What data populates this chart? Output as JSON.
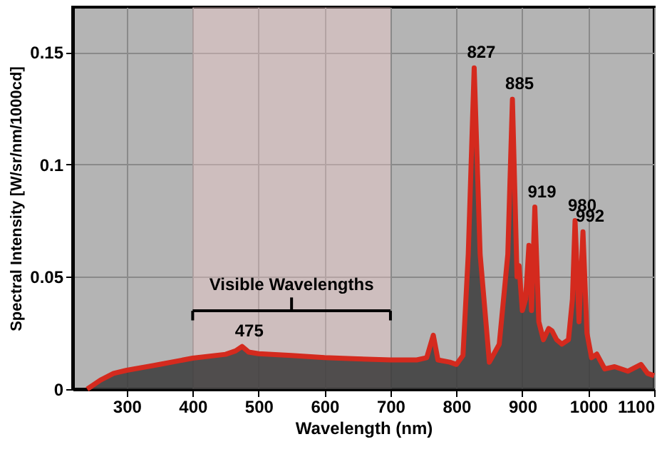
{
  "chart_data": {
    "type": "area",
    "xlabel": "Wavelength (nm)",
    "ylabel": "Spectral Intensity [W/sr/nm/1000cd]",
    "xlim": [
      218,
      1100
    ],
    "xticks": [
      300,
      400,
      500,
      600,
      700,
      800,
      900,
      1000,
      1100
    ],
    "ylim": [
      0,
      0.17
    ],
    "yticks": [
      0,
      0.05,
      0.1,
      0.15
    ],
    "grid": true,
    "x": [
      240,
      260,
      280,
      300,
      350,
      400,
      450,
      465,
      475,
      485,
      500,
      550,
      600,
      650,
      700,
      740,
      755,
      765,
      772,
      790,
      800,
      810,
      818,
      827,
      836,
      850,
      865,
      878,
      885,
      892,
      895,
      900,
      905,
      910,
      914,
      919,
      925,
      932,
      940,
      945,
      952,
      960,
      970,
      976,
      980,
      986,
      992,
      998,
      1005,
      1013,
      1025,
      1040,
      1060,
      1080,
      1090,
      1100
    ],
    "series": [
      {
        "color": "#d42a1e",
        "values": [
          0,
          0.004,
          0.007,
          0.0084,
          0.011,
          0.0138,
          0.0155,
          0.017,
          0.019,
          0.0165,
          0.0158,
          0.015,
          0.014,
          0.0135,
          0.013,
          0.013,
          0.014,
          0.024,
          0.013,
          0.012,
          0.011,
          0.015,
          0.06,
          0.143,
          0.06,
          0.012,
          0.02,
          0.06,
          0.129,
          0.05,
          0.055,
          0.035,
          0.04,
          0.064,
          0.035,
          0.081,
          0.03,
          0.022,
          0.027,
          0.026,
          0.022,
          0.02,
          0.022,
          0.04,
          0.075,
          0.03,
          0.07,
          0.025,
          0.014,
          0.0156,
          0.009,
          0.01,
          0.008,
          0.011,
          0.007,
          0.006
        ]
      }
    ],
    "bands": [
      {
        "axis": "x",
        "from": 400,
        "to": 700,
        "label": "Visible Wavelengths"
      }
    ],
    "annotations": [
      {
        "text": "475",
        "x": 475,
        "y": 0.019
      },
      {
        "text": "827",
        "x": 827,
        "y": 0.143
      },
      {
        "text": "885",
        "x": 885,
        "y": 0.129
      },
      {
        "text": "919",
        "x": 919,
        "y": 0.081
      },
      {
        "text": "980",
        "x": 980,
        "y": 0.075
      },
      {
        "text": "992",
        "x": 992,
        "y": 0.07
      }
    ]
  }
}
